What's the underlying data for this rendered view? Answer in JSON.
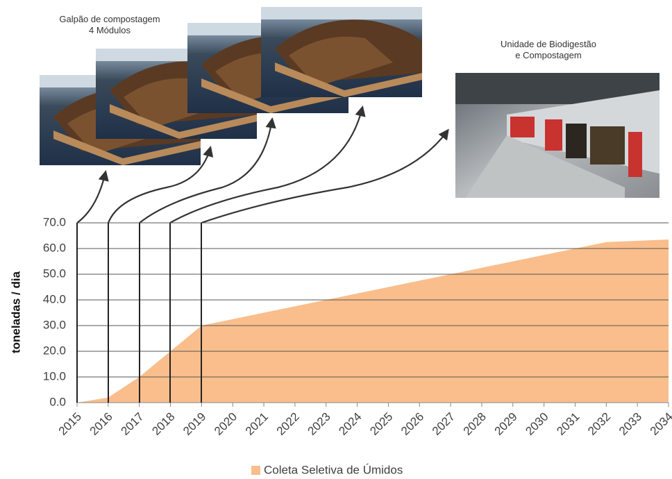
{
  "chart_data": {
    "type": "area",
    "annotations": [
      "Galpão de compostagem\n4 Módulos",
      "Unidade de Biodigestão\ne Compostagem"
    ],
    "y_label": "toneladas / dia",
    "categories": [
      "2015",
      "2016",
      "2017",
      "2018",
      "2019",
      "2020",
      "2021",
      "2022",
      "2023",
      "2024",
      "2025",
      "2026",
      "2027",
      "2028",
      "2029",
      "2030",
      "2031",
      "2032",
      "2033",
      "2034"
    ],
    "series": [
      {
        "name": "Coleta Seletiva de Úmidos",
        "color": "#f9be8c",
        "values": [
          0,
          2,
          10,
          20,
          30,
          32.5,
          35,
          37.5,
          40,
          42.5,
          45,
          47.5,
          50,
          52.5,
          55,
          57.5,
          60,
          62.5,
          63,
          63.5
        ]
      }
    ],
    "ylim": [
      0,
      70
    ],
    "yticks": [
      {
        "value": 0,
        "label": "0.0"
      },
      {
        "value": 10,
        "label": "10.0"
      },
      {
        "value": 20,
        "label": "20.0"
      },
      {
        "value": 30,
        "label": "30.0"
      },
      {
        "value": 40,
        "label": "40.0"
      },
      {
        "value": 50,
        "label": "50.0"
      },
      {
        "value": 60,
        "label": "60.0"
      },
      {
        "value": 70,
        "label": "70.0"
      }
    ],
    "grid": true
  }
}
